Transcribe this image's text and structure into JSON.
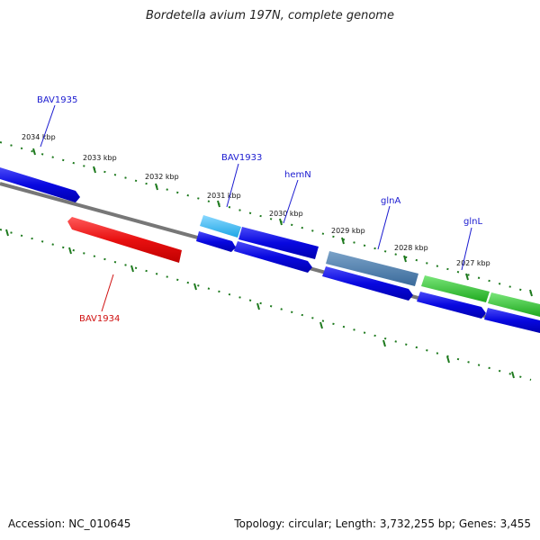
{
  "title": "Bordetella avium 197N, complete genome",
  "accession": "Accession: NC_010645",
  "topology": "Topology: circular; Length: 3,732,255 bp; Genes: 3,455",
  "colors": {
    "backbone": "#7a7a7a",
    "tick": "#1e7a1e",
    "plus_gene": "#0a0adc",
    "minus_gene": "#e01414",
    "label_plus": "#1a1ad0",
    "label_minus": "#d01010",
    "light_blue": "#34b4ee",
    "steel_blue": "#4a7fb0",
    "green": "#2ec42e"
  },
  "kbp_labels": [
    "2034 kbp",
    "2033 kbp",
    "2032 kbp",
    "2031 kbp",
    "2030 kbp",
    "2029 kbp",
    "2028 kbp",
    "2027 kbp"
  ],
  "gene_labels": {
    "bav1935": "BAV1935",
    "bav1933": "BAV1933",
    "hemn": "hemN",
    "glna": "glnA",
    "glnl": "glnL",
    "bav1934": "BAV1934"
  }
}
